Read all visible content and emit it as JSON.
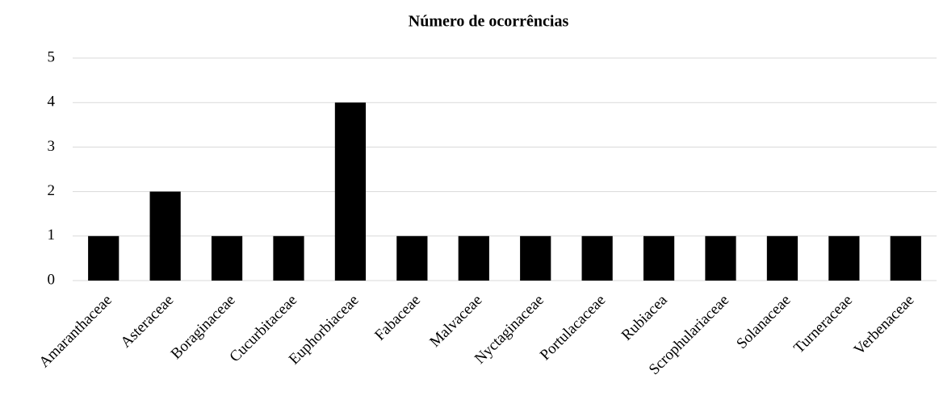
{
  "chart_data": {
    "type": "bar",
    "title": "Número de ocorrências",
    "categories": [
      "Amaranthaceae",
      "Asteraceae",
      "Boraginaceae",
      "Cucurbitaceae",
      "Euphorbiaceae",
      "Fabaceae",
      "Malvaceae",
      "Nyctaginaceae",
      "Portulacaceae",
      "Rubiacea",
      "Scrophulariaceae",
      "Solanaceae",
      "Turneraceae",
      "Verbenaceae"
    ],
    "values": [
      1,
      2,
      1,
      1,
      4,
      1,
      1,
      1,
      1,
      1,
      1,
      1,
      1,
      1
    ],
    "color": "#000000",
    "ylim": [
      0,
      5
    ],
    "yticks": [
      0,
      1,
      2,
      3,
      4,
      5
    ],
    "grid": true
  }
}
